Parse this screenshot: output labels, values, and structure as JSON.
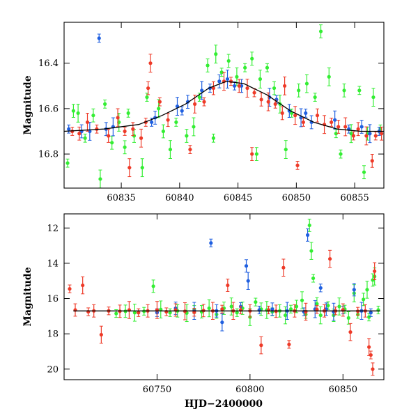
{
  "figure": {
    "shared_xlabel": "HJD−2400000",
    "colors": {
      "green": "#33ee33",
      "blue": "#1f5fe0",
      "red": "#ee3a28",
      "model": "#000000"
    }
  },
  "chart_data": [
    {
      "type": "scatter",
      "panel": "top",
      "ylabel": "Magnitude",
      "xlim": [
        60830.1,
        60857.5
      ],
      "ylim": [
        16.95,
        16.22
      ],
      "y_inverted": true,
      "x_ticks": [
        60835,
        60840,
        60845,
        60850,
        60855
      ],
      "y_ticks": [
        16.4,
        16.6,
        16.8
      ],
      "grid": false,
      "series": [
        {
          "color": "green",
          "points": [
            [
              60830.4,
              16.84
            ],
            [
              60830.9,
              16.61
            ],
            [
              60831.3,
              16.62
            ],
            [
              60831.9,
              16.73
            ],
            [
              60832.6,
              16.63
            ],
            [
              60833.2,
              16.91
            ],
            [
              60833.6,
              16.58
            ],
            [
              60834.2,
              16.75
            ],
            [
              60834.8,
              16.66
            ],
            [
              60835.6,
              16.62
            ],
            [
              60836.1,
              16.72
            ],
            [
              60836.8,
              16.86
            ],
            [
              60837.2,
              16.55
            ],
            [
              60838.6,
              16.7
            ],
            [
              60839.2,
              16.78
            ],
            [
              60839.7,
              16.66
            ],
            [
              60840.6,
              16.72
            ],
            [
              60841.2,
              16.68
            ],
            [
              60841.7,
              16.55
            ],
            [
              60842.4,
              16.41
            ],
            [
              60843.1,
              16.36
            ],
            [
              60843.6,
              16.44
            ],
            [
              60844.2,
              16.39
            ],
            [
              60844.9,
              16.46
            ],
            [
              60845.6,
              16.42
            ],
            [
              60846.2,
              16.38
            ],
            [
              60846.9,
              16.47
            ],
            [
              60847.5,
              16.42
            ],
            [
              60848.1,
              16.51
            ],
            [
              60848.6,
              16.58
            ],
            [
              60849.6,
              16.62
            ],
            [
              60850.2,
              16.52
            ],
            [
              60850.9,
              16.49
            ],
            [
              60851.6,
              16.55
            ],
            [
              60852.1,
              16.26
            ],
            [
              60852.8,
              16.46
            ],
            [
              60853.4,
              16.71
            ],
            [
              60854.1,
              16.52
            ],
            [
              60854.7,
              16.71
            ],
            [
              60855.4,
              16.52
            ],
            [
              60856.1,
              16.71
            ],
            [
              60856.6,
              16.55
            ],
            [
              60857.2,
              16.69
            ],
            [
              60835.3,
              16.77
            ],
            [
              60838.2,
              16.6
            ],
            [
              60842.9,
              16.73
            ],
            [
              60846.6,
              16.8
            ],
            [
              60849.1,
              16.78
            ],
            [
              60853.8,
              16.8
            ],
            [
              60855.8,
              16.88
            ]
          ]
        },
        {
          "color": "blue",
          "points": [
            [
              60830.5,
              16.69
            ],
            [
              60831.6,
              16.7
            ],
            [
              60832.3,
              16.7
            ],
            [
              60833.1,
              16.29
            ],
            [
              60833.7,
              16.69
            ],
            [
              60834.3,
              16.68
            ],
            [
              60837.6,
              16.66
            ],
            [
              60837.9,
              16.64
            ],
            [
              60839.8,
              16.59
            ],
            [
              60840.2,
              16.61
            ],
            [
              60840.7,
              16.57
            ],
            [
              60841.9,
              16.52
            ],
            [
              60842.6,
              16.51
            ],
            [
              60843.4,
              16.48
            ],
            [
              60844.1,
              16.47
            ],
            [
              60844.7,
              16.5
            ],
            [
              60845.3,
              16.5
            ],
            [
              60847.7,
              16.55
            ],
            [
              60848.3,
              16.56
            ],
            [
              60849.4,
              16.61
            ],
            [
              60850.4,
              16.64
            ],
            [
              60850.8,
              16.62
            ],
            [
              60851.3,
              16.66
            ],
            [
              60853.3,
              16.65
            ],
            [
              60854.5,
              16.69
            ],
            [
              60855.6,
              16.68
            ],
            [
              60856.3,
              16.71
            ],
            [
              60857.1,
              16.7
            ]
          ]
        },
        {
          "color": "red",
          "points": [
            [
              60830.8,
              16.7
            ],
            [
              60831.4,
              16.71
            ],
            [
              60832.1,
              16.66
            ],
            [
              60832.9,
              16.69
            ],
            [
              60833.9,
              16.72
            ],
            [
              60834.7,
              16.64
            ],
            [
              60835.3,
              16.7
            ],
            [
              60836.0,
              16.69
            ],
            [
              60836.7,
              16.73
            ],
            [
              60837.1,
              16.66
            ],
            [
              60837.3,
              16.51
            ],
            [
              60837.5,
              16.4
            ],
            [
              60838.3,
              16.57
            ],
            [
              60839.0,
              16.65
            ],
            [
              60841.3,
              16.58
            ],
            [
              60842.1,
              16.57
            ],
            [
              60842.9,
              16.51
            ],
            [
              60843.8,
              16.48
            ],
            [
              60844.4,
              16.48
            ],
            [
              60845.1,
              16.5
            ],
            [
              60845.8,
              16.51
            ],
            [
              60846.4,
              16.53
            ],
            [
              60847.0,
              16.56
            ],
            [
              60847.6,
              16.57
            ],
            [
              60848.2,
              16.58
            ],
            [
              60848.8,
              16.62
            ],
            [
              60849.9,
              16.63
            ],
            [
              60850.6,
              16.66
            ],
            [
              60851.8,
              16.63
            ],
            [
              60852.4,
              16.67
            ],
            [
              60853.0,
              16.66
            ],
            [
              60853.6,
              16.68
            ],
            [
              60854.2,
              16.68
            ],
            [
              60854.9,
              16.72
            ],
            [
              60855.3,
              16.69
            ],
            [
              60856.0,
              16.72
            ],
            [
              60856.8,
              16.72
            ],
            [
              60857.3,
              16.71
            ],
            [
              60835.7,
              16.86
            ],
            [
              60840.9,
              16.78
            ],
            [
              60846.2,
              16.8
            ],
            [
              60849.0,
              16.5
            ],
            [
              60850.1,
              16.85
            ],
            [
              60856.5,
              16.83
            ]
          ]
        }
      ],
      "model_curve": [
        [
          60830.1,
          16.7
        ],
        [
          60833.5,
          16.69
        ],
        [
          60836.5,
          16.67
        ],
        [
          60838.5,
          16.63
        ],
        [
          60840.5,
          16.58
        ],
        [
          60842.5,
          16.51
        ],
        [
          60844.0,
          16.48
        ],
        [
          60845.5,
          16.49
        ],
        [
          60847.5,
          16.54
        ],
        [
          60849.5,
          16.61
        ],
        [
          60851.5,
          16.66
        ],
        [
          60853.5,
          16.69
        ],
        [
          60855.5,
          16.7
        ],
        [
          60857.5,
          16.7
        ]
      ]
    },
    {
      "type": "scatter",
      "panel": "bottom",
      "ylabel": "Magnitude",
      "xlabel": "HJD−2400000",
      "xlim": [
        60700,
        60872
      ],
      "ylim": [
        20.6,
        11.2
      ],
      "y_inverted": true,
      "x_ticks": [
        60750,
        60800,
        60850
      ],
      "y_ticks": [
        12,
        14,
        16,
        18,
        20
      ],
      "grid": false,
      "series": [
        {
          "color": "green",
          "points": [
            [
              60728,
              16.85
            ],
            [
              60733,
              16.72
            ],
            [
              60738,
              16.8
            ],
            [
              60743,
              16.72
            ],
            [
              60748,
              15.3
            ],
            [
              60752,
              16.62
            ],
            [
              60757,
              16.8
            ],
            [
              60761,
              16.7
            ],
            [
              60766,
              16.82
            ],
            [
              60770,
              16.62
            ],
            [
              60774,
              16.75
            ],
            [
              60778,
              16.55
            ],
            [
              60782,
              16.9
            ],
            [
              60786,
              16.55
            ],
            [
              60790,
              16.45
            ],
            [
              60793,
              16.8
            ],
            [
              60796,
              16.55
            ],
            [
              60800,
              17.05
            ],
            [
              60803,
              16.2
            ],
            [
              60806,
              16.6
            ],
            [
              60809,
              16.65
            ],
            [
              60812,
              16.75
            ],
            [
              60816,
              16.7
            ],
            [
              60819,
              16.95
            ],
            [
              60822,
              16.6
            ],
            [
              60825,
              16.45
            ],
            [
              60828,
              16.1
            ],
            [
              60830,
              16.9
            ],
            [
              60832,
              11.85
            ],
            [
              60833,
              13.3
            ],
            [
              60834,
              14.85
            ],
            [
              60836,
              16.3
            ],
            [
              60838,
              16.95
            ],
            [
              60842,
              16.4
            ],
            [
              60845,
              16.95
            ],
            [
              60848,
              16.45
            ],
            [
              60851,
              16.6
            ],
            [
              60853,
              17.1
            ],
            [
              60856,
              15.7
            ],
            [
              60858,
              16.9
            ],
            [
              60861,
              16.05
            ],
            [
              60863,
              15.5
            ],
            [
              60864,
              17.05
            ],
            [
              60866,
              14.95
            ],
            [
              60867,
              14.75
            ],
            [
              60869,
              16.65
            ]
          ]
        },
        {
          "color": "blue",
          "points": [
            [
              60750,
              16.8
            ],
            [
              60760,
              16.55
            ],
            [
              60770,
              16.7
            ],
            [
              60779,
              12.85
            ],
            [
              60782,
              16.7
            ],
            [
              60785,
              17.35
            ],
            [
              60795,
              16.45
            ],
            [
              60798,
              14.15
            ],
            [
              60799,
              15.0
            ],
            [
              60805,
              16.65
            ],
            [
              60812,
              16.6
            ],
            [
              60820,
              16.7
            ],
            [
              60829,
              16.75
            ],
            [
              60831,
              12.4
            ],
            [
              60835,
              16.6
            ],
            [
              60838,
              15.4
            ],
            [
              60841,
              16.6
            ],
            [
              60845,
              16.75
            ],
            [
              60850,
              16.65
            ],
            [
              60856,
              15.5
            ],
            [
              60860,
              16.7
            ],
            [
              60865,
              16.8
            ]
          ]
        },
        {
          "color": "red",
          "points": [
            [
              60703,
              15.45
            ],
            [
              60706,
              16.65
            ],
            [
              60710,
              15.25
            ],
            [
              60713,
              16.75
            ],
            [
              60716,
              16.7
            ],
            [
              60720,
              18.05
            ],
            [
              60724,
              16.7
            ],
            [
              60730,
              16.72
            ],
            [
              60735,
              16.65
            ],
            [
              60740,
              16.8
            ],
            [
              60745,
              16.7
            ],
            [
              60750,
              16.65
            ],
            [
              60755,
              16.75
            ],
            [
              60760,
              16.65
            ],
            [
              60765,
              16.72
            ],
            [
              60770,
              16.78
            ],
            [
              60775,
              16.68
            ],
            [
              60780,
              16.7
            ],
            [
              60785,
              16.6
            ],
            [
              60788,
              15.25
            ],
            [
              60791,
              16.7
            ],
            [
              60795,
              16.65
            ],
            [
              60800,
              16.7
            ],
            [
              60806,
              18.65
            ],
            [
              60810,
              16.65
            ],
            [
              60814,
              16.72
            ],
            [
              60818,
              14.25
            ],
            [
              60821,
              18.6
            ],
            [
              60824,
              16.7
            ],
            [
              60830,
              16.75
            ],
            [
              60836,
              16.62
            ],
            [
              60840,
              16.7
            ],
            [
              60843,
              13.75
            ],
            [
              60846,
              16.7
            ],
            [
              60850,
              16.65
            ],
            [
              60854,
              17.9
            ],
            [
              60858,
              16.72
            ],
            [
              60862,
              16.7
            ],
            [
              60864,
              18.75
            ],
            [
              60865,
              19.2
            ],
            [
              60866,
              20.0
            ],
            [
              60867,
              14.45
            ]
          ]
        }
      ],
      "model_curve": [
        [
          60705,
          16.7
        ],
        [
          60870,
          16.7
        ]
      ]
    }
  ]
}
